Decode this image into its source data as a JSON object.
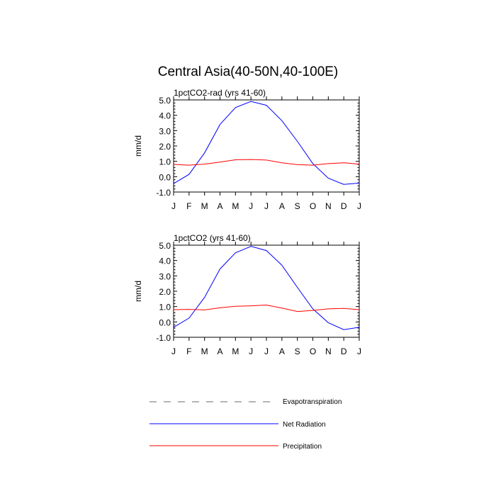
{
  "figure": {
    "title": "Central Asia(40-50N,40-100E)"
  },
  "chart_data": [
    {
      "type": "line",
      "title": "1pctCO2-rad (yrs 41-60)",
      "ylabel": "mm/d",
      "xlabel": "",
      "categories": [
        "J",
        "F",
        "M",
        "A",
        "M",
        "J",
        "J",
        "A",
        "S",
        "O",
        "N",
        "D",
        "J"
      ],
      "ylim": [
        -1.0,
        5.0
      ],
      "yticks": [
        -1.0,
        0.0,
        1.0,
        2.0,
        3.0,
        4.0,
        5.0
      ],
      "ytick_labels": [
        "-1.0",
        "0.0",
        "1.0",
        "2.0",
        "3.0",
        "4.0",
        "5.0"
      ],
      "series": [
        {
          "key": "net_radiation",
          "color": "#0000ff",
          "values": [
            -0.45,
            0.15,
            1.55,
            3.4,
            4.5,
            4.9,
            4.65,
            3.65,
            2.3,
            0.85,
            -0.1,
            -0.5,
            -0.42
          ]
        },
        {
          "key": "precipitation",
          "color": "#ff0000",
          "values": [
            0.8,
            0.75,
            0.82,
            0.95,
            1.1,
            1.12,
            1.08,
            0.9,
            0.78,
            0.75,
            0.85,
            0.9,
            0.82
          ]
        }
      ]
    },
    {
      "type": "line",
      "title": "1pctCO2 (yrs 41-60)",
      "ylabel": "mm/d",
      "xlabel": "",
      "categories": [
        "J",
        "F",
        "M",
        "A",
        "M",
        "J",
        "J",
        "A",
        "S",
        "O",
        "N",
        "D",
        "J"
      ],
      "ylim": [
        -1.0,
        5.0
      ],
      "yticks": [
        -1.0,
        0.0,
        1.0,
        2.0,
        3.0,
        4.0,
        5.0
      ],
      "ytick_labels": [
        "-1.0",
        "0.0",
        "1.0",
        "2.0",
        "3.0",
        "4.0",
        "5.0"
      ],
      "series": [
        {
          "key": "net_radiation",
          "color": "#0000ff",
          "values": [
            -0.35,
            0.25,
            1.6,
            3.45,
            4.5,
            4.92,
            4.65,
            3.7,
            2.25,
            0.85,
            -0.05,
            -0.5,
            -0.35
          ]
        },
        {
          "key": "precipitation",
          "color": "#ff0000",
          "values": [
            0.8,
            0.82,
            0.78,
            0.92,
            1.02,
            1.05,
            1.1,
            0.9,
            0.68,
            0.75,
            0.85,
            0.88,
            0.8
          ]
        }
      ]
    }
  ],
  "legend": {
    "items": [
      {
        "label": "Evapotranspiration",
        "color": "#888888",
        "style": "dashed"
      },
      {
        "label": "Net Radiation",
        "color": "#0000ff",
        "style": "solid"
      },
      {
        "label": "Precipitation",
        "color": "#ff0000",
        "style": "solid"
      }
    ]
  }
}
